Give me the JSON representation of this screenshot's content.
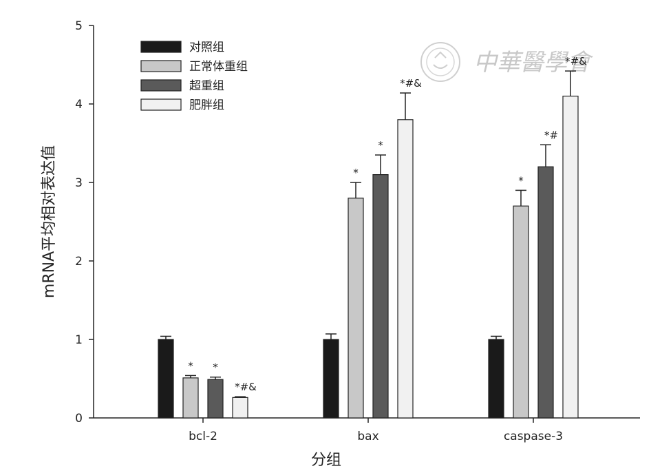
{
  "chart_data": {
    "type": "bar",
    "xlabel": "分组",
    "ylabel": "mRNA平均相对表达值",
    "ylim": [
      0,
      5
    ],
    "yticks": [
      "0",
      "1",
      "2",
      "3",
      "4",
      "5"
    ],
    "categories": [
      "bcl-2",
      "bax",
      "caspase-3"
    ],
    "series": [
      {
        "name": "对照组",
        "color": "#1a1a1a",
        "values": [
          1.0,
          1.0,
          1.0
        ],
        "errors": [
          0.04,
          0.07,
          0.04
        ],
        "marks": [
          "",
          "",
          ""
        ]
      },
      {
        "name": "正常体重组",
        "color": "#c8c8c8",
        "values": [
          0.51,
          2.8,
          2.7
        ],
        "errors": [
          0.03,
          0.2,
          0.2
        ],
        "marks": [
          "*",
          "*",
          "*"
        ]
      },
      {
        "name": "超重组",
        "color": "#5a5a5a",
        "values": [
          0.49,
          3.1,
          3.2
        ],
        "errors": [
          0.03,
          0.25,
          0.28
        ],
        "marks": [
          "*",
          "*",
          "*#"
        ]
      },
      {
        "name": "肥胖组",
        "color": "#f1f1f1",
        "values": [
          0.26,
          3.8,
          4.1
        ],
        "errors": [
          0.01,
          0.34,
          0.32
        ],
        "marks": [
          "*#&",
          "*#&",
          "*#&"
        ]
      }
    ],
    "legend_position": "top-left",
    "grid": false
  },
  "watermark": {
    "text": "中華醫學會",
    "seal_icon": "seal-icon"
  }
}
